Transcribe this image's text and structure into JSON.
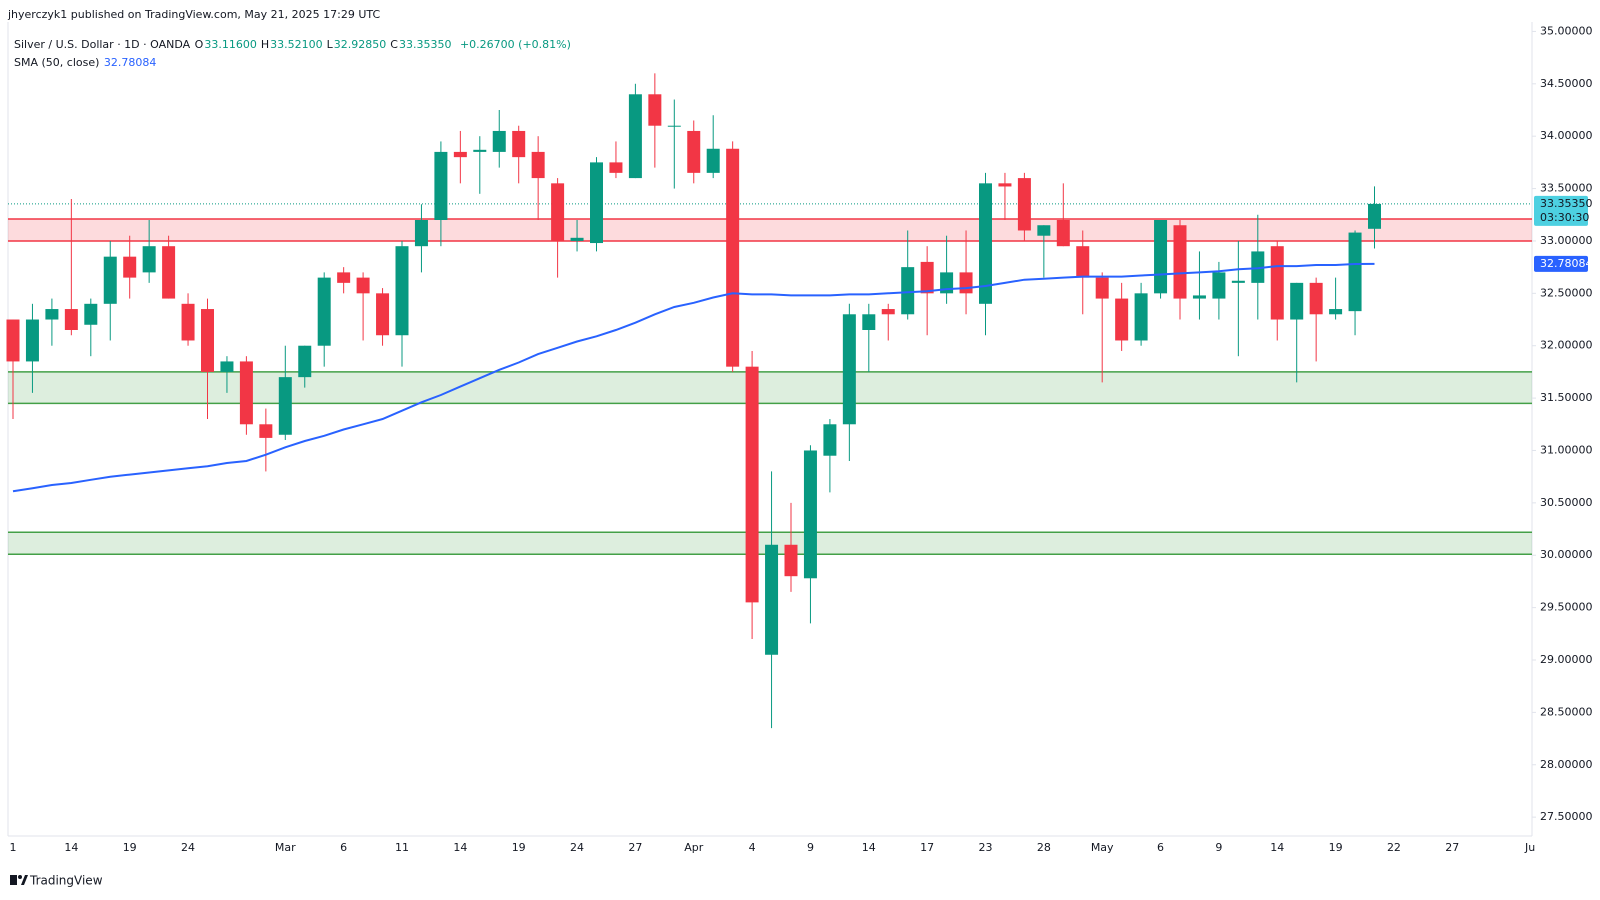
{
  "header": {
    "publisher": "jhyerczyk1 published on TradingView.com, May 21, 2025 17:29 UTC"
  },
  "footer": {
    "brand": "TradingView"
  },
  "chart_data": {
    "type": "candlestick",
    "title": "Silver / U.S. Dollar · 1D · OANDA",
    "ohlc": [
      {
        "key": "O",
        "value": 33.116,
        "label": "33.11600"
      },
      {
        "key": "H",
        "value": 33.521,
        "label": "33.52100"
      },
      {
        "key": "L",
        "value": 32.9285,
        "label": "32.92850"
      },
      {
        "key": "C",
        "value": 33.3535,
        "label": "33.35350"
      }
    ],
    "change": "+0.26700 (+0.81%)",
    "countdown": "03:30:30",
    "color_up": "#089981",
    "color_down": "#f23645",
    "categories": [
      "1",
      null,
      null,
      "14",
      null,
      null,
      "19",
      null,
      null,
      "24",
      null,
      null,
      null,
      null,
      "Mar",
      null,
      null,
      "6",
      null,
      null,
      "11",
      null,
      null,
      "14",
      null,
      null,
      "19",
      null,
      null,
      "24",
      null,
      null,
      "27",
      null,
      null,
      "Apr",
      null,
      null,
      "4",
      null,
      null,
      "9",
      null,
      null,
      "14",
      null,
      null,
      "17",
      null,
      null,
      "23",
      null,
      null,
      "28",
      null,
      null,
      "May",
      null,
      null,
      "6",
      null,
      null,
      "9",
      null,
      null,
      "14",
      null,
      null,
      "19",
      null,
      null,
      "22",
      null,
      null,
      "27",
      null,
      null,
      null,
      "Ju"
    ],
    "open": [
      32.25,
      31.85,
      32.25,
      32.35,
      32.2,
      32.4,
      32.85,
      32.7,
      32.95,
      32.4,
      32.35,
      31.75,
      31.85,
      31.25,
      31.15,
      31.7,
      32.0,
      32.7,
      32.65,
      32.5,
      32.1,
      32.95,
      33.2,
      33.85,
      33.85,
      33.85,
      34.05,
      33.85,
      33.55,
      33.0,
      32.98,
      33.75,
      33.6,
      34.4,
      34.1,
      34.05,
      33.65,
      33.88,
      31.8,
      29.05,
      30.1,
      29.78,
      30.95,
      31.25,
      32.15,
      32.35,
      32.3,
      32.8,
      32.5,
      32.7,
      32.4,
      33.55,
      33.6,
      33.05,
      33.2,
      32.95,
      32.65,
      32.45,
      32.05,
      32.5,
      33.15,
      32.45,
      32.45,
      32.6,
      32.6,
      32.95,
      32.25,
      32.6,
      32.3,
      32.33,
      33.116,
      null,
      null,
      null,
      null,
      null,
      null,
      null,
      null
    ],
    "high": [
      32.25,
      32.4,
      32.45,
      33.4,
      32.45,
      33.0,
      33.05,
      33.2,
      33.05,
      32.5,
      32.45,
      31.9,
      31.9,
      31.4,
      32.0,
      32.0,
      32.7,
      32.75,
      32.7,
      32.55,
      33.0,
      33.35,
      33.95,
      34.05,
      34.0,
      34.25,
      34.1,
      34.0,
      33.6,
      33.2,
      33.8,
      33.95,
      34.5,
      34.6,
      34.35,
      34.15,
      34.2,
      33.95,
      31.95,
      30.8,
      30.5,
      31.05,
      31.3,
      32.4,
      32.4,
      32.4,
      33.1,
      32.95,
      33.05,
      33.1,
      33.65,
      33.65,
      33.65,
      33.15,
      33.55,
      33.1,
      32.7,
      32.6,
      32.6,
      33.2,
      33.2,
      32.9,
      32.8,
      33.0,
      33.25,
      33.0,
      32.6,
      32.65,
      32.65,
      33.1,
      33.521,
      null,
      null,
      null,
      null,
      null,
      null,
      null,
      null
    ],
    "low": [
      31.3,
      31.55,
      32.0,
      32.1,
      31.9,
      32.05,
      32.45,
      32.6,
      32.45,
      32.0,
      31.3,
      31.55,
      31.15,
      30.8,
      31.1,
      31.6,
      31.8,
      32.5,
      32.05,
      32.0,
      31.8,
      32.7,
      32.95,
      33.55,
      33.45,
      33.7,
      33.55,
      33.2,
      32.65,
      32.9,
      32.9,
      33.6,
      33.6,
      33.7,
      33.5,
      33.55,
      33.6,
      31.75,
      29.2,
      28.35,
      29.65,
      29.35,
      30.6,
      30.9,
      31.75,
      32.05,
      32.25,
      32.1,
      32.4,
      32.3,
      32.1,
      33.2,
      33.0,
      32.65,
      32.95,
      32.3,
      31.65,
      31.95,
      32.0,
      32.45,
      32.25,
      32.25,
      32.25,
      31.9,
      32.25,
      32.05,
      31.65,
      31.85,
      32.25,
      32.1,
      32.9285,
      null,
      null,
      null,
      null,
      null,
      null,
      null,
      null
    ],
    "close": [
      31.85,
      32.25,
      32.35,
      32.15,
      32.4,
      32.85,
      32.65,
      32.95,
      32.45,
      32.05,
      31.75,
      31.85,
      31.25,
      31.12,
      31.7,
      32.0,
      32.65,
      32.6,
      32.5,
      32.1,
      32.95,
      33.2,
      33.85,
      33.8,
      33.87,
      34.05,
      33.8,
      33.6,
      33.0,
      33.03,
      33.75,
      33.65,
      34.4,
      34.1,
      34.1,
      33.65,
      33.88,
      31.8,
      29.55,
      30.1,
      29.8,
      31.0,
      31.25,
      32.3,
      32.3,
      32.3,
      32.75,
      32.5,
      32.7,
      32.5,
      33.55,
      33.52,
      33.1,
      33.15,
      32.95,
      32.65,
      32.45,
      32.05,
      32.5,
      33.2,
      32.45,
      32.48,
      32.7,
      32.62,
      32.9,
      32.25,
      32.6,
      32.3,
      32.35,
      33.08,
      33.3535,
      null,
      null,
      null,
      null,
      null,
      null,
      null,
      null
    ],
    "indicators": [
      {
        "name": "SMA (50, close)",
        "color": "#2962ff",
        "last": {
          "value": 32.78084,
          "label": "32.78084"
        },
        "values": [
          30.61,
          30.64,
          30.67,
          30.69,
          30.72,
          30.75,
          30.77,
          30.79,
          30.81,
          30.83,
          30.85,
          30.88,
          30.9,
          30.96,
          31.03,
          31.09,
          31.14,
          31.2,
          31.25,
          31.3,
          31.38,
          31.46,
          31.53,
          31.61,
          31.69,
          31.77,
          31.84,
          31.92,
          31.98,
          32.04,
          32.09,
          32.15,
          32.22,
          32.3,
          32.37,
          32.41,
          32.46,
          32.5,
          32.49,
          32.49,
          32.48,
          32.48,
          32.48,
          32.49,
          32.49,
          32.5,
          32.51,
          32.52,
          32.54,
          32.55,
          32.57,
          32.6,
          32.63,
          32.64,
          32.65,
          32.66,
          32.66,
          32.66,
          32.67,
          32.68,
          32.69,
          32.7,
          32.71,
          32.73,
          32.74,
          32.76,
          32.76,
          32.77,
          32.77,
          32.78,
          32.78084,
          null,
          null,
          null,
          null,
          null,
          null,
          null,
          null
        ]
      }
    ],
    "zones": [
      {
        "low": 33.0,
        "high": 33.21,
        "color": "#f23645"
      },
      {
        "low": 31.45,
        "high": 31.75,
        "color": "#43a047"
      },
      {
        "low": 30.01,
        "high": 30.22,
        "color": "#43a047"
      }
    ],
    "ylim": [
      27.32,
      35.09
    ],
    "yticks": [
      {
        "value": 27.5,
        "label": "27.50000"
      },
      {
        "value": 28,
        "label": "28.00000"
      },
      {
        "value": 28.5,
        "label": "28.50000"
      },
      {
        "value": 29,
        "label": "29.00000"
      },
      {
        "value": 29.5,
        "label": "29.50000"
      },
      {
        "value": 30,
        "label": "30.00000"
      },
      {
        "value": 30.5,
        "label": "30.50000"
      },
      {
        "value": 31,
        "label": "31.00000"
      },
      {
        "value": 31.5,
        "label": "31.50000"
      },
      {
        "value": 32,
        "label": "32.00000"
      },
      {
        "value": 32.5,
        "label": "32.50000"
      },
      {
        "value": 33,
        "label": "33.00000"
      },
      {
        "value": 33.5,
        "label": "33.50000"
      },
      {
        "value": 34,
        "label": "34.00000"
      },
      {
        "value": 34.5,
        "label": "34.50000"
      },
      {
        "value": 35,
        "label": "35.00000"
      }
    ],
    "grid": false
  }
}
